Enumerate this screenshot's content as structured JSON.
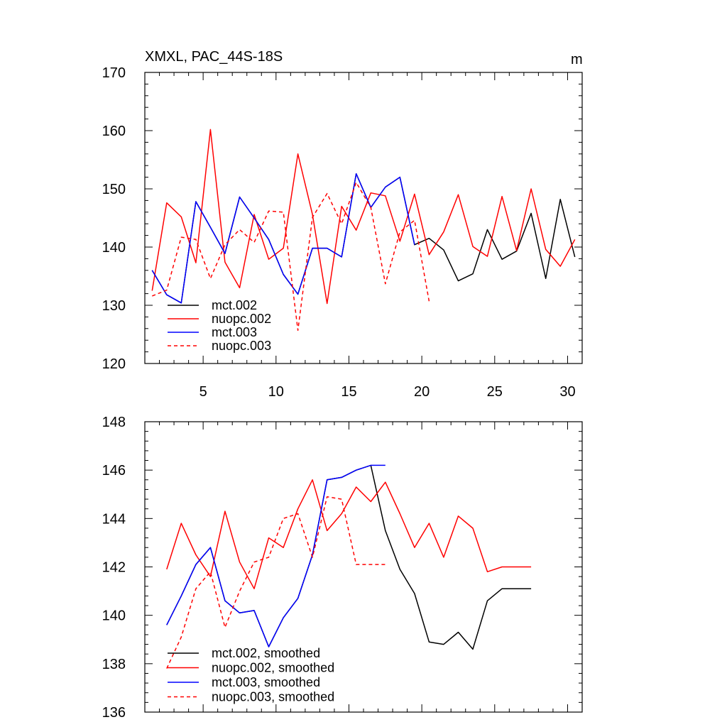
{
  "chart_data": [
    {
      "type": "line",
      "title": "XMXL, PAC_44S-18S",
      "units_label": "m",
      "xlim": [
        1,
        31
      ],
      "ylim": [
        120,
        170
      ],
      "x_ticks": [
        5,
        10,
        15,
        20,
        25,
        30
      ],
      "y_ticks": [
        120,
        130,
        140,
        150,
        160,
        170
      ],
      "x_tick_labels_visible": true,
      "legend": {
        "placement": "bottom-left"
      },
      "series": [
        {
          "name": "mct.002",
          "color": "#000000",
          "dash": "solid",
          "x": [
            1.5,
            2.5,
            3.5,
            4.5,
            5.5,
            6.5,
            7.5,
            8.5,
            9.5,
            10.5,
            11.5,
            12.5,
            13.5,
            14.5,
            15.5,
            16.5,
            17.5,
            18.5,
            19.5,
            20.5,
            21.5,
            22.5,
            23.5,
            24.5,
            25.5,
            26.5,
            27.5,
            28.5,
            29.5,
            30.5
          ],
          "y": [
            136,
            131.8,
            130.4,
            147.8,
            143.4,
            138.9,
            148.6,
            145,
            141.3,
            135.3,
            131.9,
            139.8,
            139.8,
            138.3,
            152.6,
            146.8,
            150.3,
            152,
            140.4,
            141.5,
            139.5,
            134.2,
            135.4,
            143,
            137.9,
            139.3,
            145.8,
            134.6,
            148.2,
            138.3
          ]
        },
        {
          "name": "nuopc.002",
          "color": "#ff0000",
          "dash": "solid",
          "x": [
            1.5,
            2.5,
            3.5,
            4.5,
            5.5,
            6.5,
            7.5,
            8.5,
            9.5,
            10.5,
            11.5,
            12.5,
            13.5,
            14.5,
            15.5,
            16.5,
            17.5,
            18.5,
            19.5,
            20.5,
            21.5,
            22.5,
            23.5,
            24.5,
            25.5,
            26.5,
            27.5,
            28.5,
            29.5,
            30.5
          ],
          "y": [
            132.5,
            147.6,
            145.2,
            137.3,
            160.2,
            137.4,
            133,
            145.6,
            137.9,
            139.8,
            156,
            145.6,
            130.3,
            147,
            142.9,
            149.3,
            148.8,
            141,
            149.1,
            138.7,
            142.6,
            149,
            140.1,
            138.4,
            148.7,
            139.4,
            150,
            139.6,
            136.7,
            141.3
          ]
        },
        {
          "name": "mct.003",
          "color": "#0000ff",
          "dash": "solid",
          "x": [
            1.5,
            2.5,
            3.5,
            4.5,
            5.5,
            6.5,
            7.5,
            8.5,
            9.5,
            10.5,
            11.5,
            12.5,
            13.5,
            14.5,
            15.5,
            16.5,
            17.5,
            18.5,
            19.5
          ],
          "y": [
            136,
            131.8,
            130.4,
            147.8,
            143.4,
            138.9,
            148.6,
            145,
            141.3,
            135.3,
            131.9,
            139.8,
            139.8,
            138.3,
            152.6,
            146.8,
            150.3,
            152,
            140.4
          ]
        },
        {
          "name": "nuopc.003",
          "color": "#ff0000",
          "dash": "dashed",
          "x": [
            1.5,
            2.5,
            3.5,
            4.5,
            5.5,
            6.5,
            7.5,
            8.5,
            9.5,
            10.5,
            11.5,
            12.5,
            13.5,
            14.5,
            15.5,
            16.5,
            17.5,
            18.5,
            19.5,
            20.5
          ],
          "y": [
            131.6,
            132.6,
            141.7,
            141.3,
            134.6,
            140.4,
            143,
            140.8,
            146.2,
            146,
            125.7,
            145.1,
            149.2,
            144,
            151.1,
            146.8,
            133.7,
            142.6,
            144.6,
            130.7
          ]
        }
      ]
    },
    {
      "type": "line",
      "title": "",
      "xlim": [
        1,
        31
      ],
      "ylim": [
        136,
        148
      ],
      "x_ticks": [
        5,
        10,
        15,
        20,
        25,
        30
      ],
      "y_ticks": [
        136,
        138,
        140,
        142,
        144,
        146,
        148
      ],
      "x_tick_labels_visible": false,
      "legend": {
        "placement": "bottom-left"
      },
      "series": [
        {
          "name": "mct.002, smoothed",
          "color": "#000000",
          "dash": "solid",
          "x": [
            2.5,
            3.5,
            4.5,
            5.5,
            6.5,
            7.5,
            8.5,
            9.5,
            10.5,
            11.5,
            12.5,
            13.5,
            14.5,
            15.5,
            16.5,
            17.5,
            18.5,
            19.5,
            20.5,
            21.5,
            22.5,
            23.5,
            24.5,
            25.5,
            26.5,
            27.5
          ],
          "y": [
            139.6,
            140.8,
            142.1,
            142.8,
            140.6,
            140.1,
            140.2,
            138.7,
            139.9,
            140.7,
            142.5,
            145.6,
            145.7,
            146,
            146.2,
            143.5,
            141.9,
            140.9,
            138.9,
            138.8,
            139.3,
            138.6,
            140.6,
            141.1,
            141.1,
            141.1
          ]
        },
        {
          "name": "nuopc.002, smoothed",
          "color": "#ff0000",
          "dash": "solid",
          "x": [
            2.5,
            3.5,
            4.5,
            5.5,
            6.5,
            7.5,
            8.5,
            9.5,
            10.5,
            11.5,
            12.5,
            13.5,
            14.5,
            15.5,
            16.5,
            17.5,
            18.5,
            19.5,
            20.5,
            21.5,
            22.5,
            23.5,
            24.5,
            25.5,
            26.5,
            27.5
          ],
          "y": [
            141.9,
            143.8,
            142.5,
            141.6,
            144.3,
            142.2,
            141.1,
            143.2,
            142.8,
            144.4,
            145.6,
            143.5,
            144.2,
            145.3,
            144.7,
            145.5,
            144.2,
            142.8,
            143.8,
            142.4,
            144.1,
            143.6,
            141.8,
            142,
            142,
            142
          ]
        },
        {
          "name": "mct.003, smoothed",
          "color": "#0000ff",
          "dash": "solid",
          "x": [
            2.5,
            3.5,
            4.5,
            5.5,
            6.5,
            7.5,
            8.5,
            9.5,
            10.5,
            11.5,
            12.5,
            13.5,
            14.5,
            15.5,
            16.5,
            17.5
          ],
          "y": [
            139.6,
            140.8,
            142.1,
            142.8,
            140.6,
            140.1,
            140.2,
            138.7,
            139.9,
            140.7,
            142.5,
            145.6,
            145.7,
            146,
            146.2,
            146.2
          ]
        },
        {
          "name": "nuopc.003, smoothed",
          "color": "#ff0000",
          "dash": "dashed",
          "x": [
            2.5,
            3.5,
            4.5,
            5.5,
            6.5,
            7.5,
            8.5,
            9.5,
            10.5,
            11.5,
            12.5,
            13.5,
            14.5,
            15.5,
            16.5,
            17.5
          ],
          "y": [
            137.8,
            139.1,
            141.1,
            141.8,
            139.5,
            141,
            142.2,
            142.4,
            144,
            144.2,
            142.4,
            144.9,
            144.8,
            142.1,
            142.1,
            142.1
          ]
        }
      ]
    }
  ]
}
